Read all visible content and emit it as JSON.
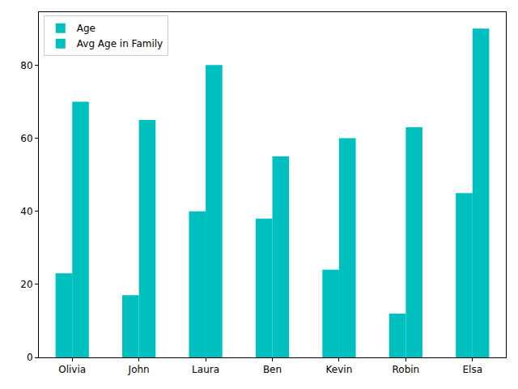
{
  "chart_data": {
    "type": "bar",
    "categories": [
      "Olivia",
      "John",
      "Laura",
      "Ben",
      "Kevin",
      "Robin",
      "Elsa"
    ],
    "series": [
      {
        "name": "Age",
        "color": "#00bfbf",
        "values": [
          23,
          17,
          40,
          38,
          24,
          12,
          45
        ]
      },
      {
        "name": "Avg Age in Family",
        "color": "#00bfbf",
        "values": [
          70,
          65,
          80,
          55,
          60,
          63,
          90
        ]
      }
    ],
    "ylim": [
      0,
      94.5
    ],
    "yticks": [
      0,
      20,
      40,
      60,
      80
    ],
    "grid": false,
    "legend": "upper left"
  }
}
